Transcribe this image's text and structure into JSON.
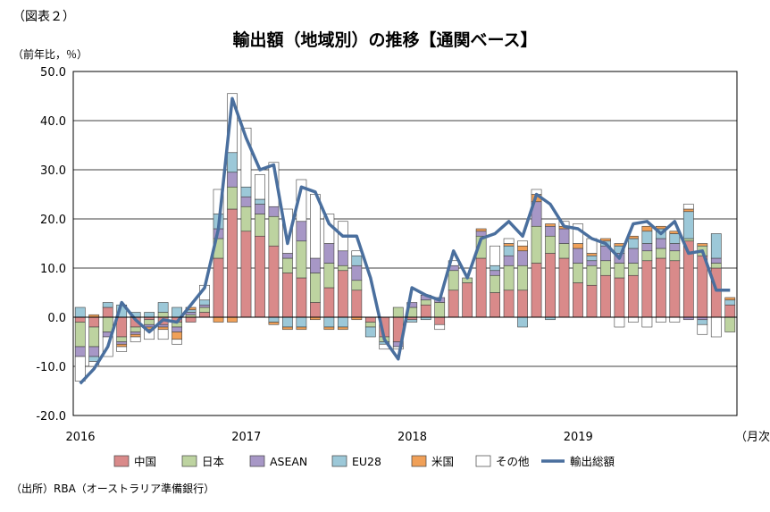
{
  "figure_label": "（図表２）",
  "source": "（出所）RBA（オーストラリア準備銀行）",
  "colors": {
    "china": "#d98a8a",
    "japan": "#bdd3a0",
    "asean": "#a797c6",
    "eu28": "#9cc8d8",
    "us": "#f0a058",
    "other": "#ffffff",
    "total": "#4a6f9e",
    "edge": "#404040"
  },
  "chart_data": {
    "type": "bar",
    "subtype": "stacked-bar-with-line",
    "title": "輸出額（地域別）の推移【通関ベース】",
    "ylabel": "（前年比，％）",
    "xlabel": "（月次）",
    "ylim": [
      -20,
      50
    ],
    "y_ticks": [
      "50.0",
      "40.0",
      "30.0",
      "20.0",
      "10.0",
      "0.0",
      "-10.0",
      "-20.0"
    ],
    "x_tick_labels": [
      {
        "label": "2016",
        "index": 0
      },
      {
        "label": "2017",
        "index": 12
      },
      {
        "label": "2018",
        "index": 24
      },
      {
        "label": "2019",
        "index": 36
      }
    ],
    "grid": true,
    "legend_position": "bottom",
    "x": [
      "2016-01",
      "2016-02",
      "2016-03",
      "2016-04",
      "2016-05",
      "2016-06",
      "2016-07",
      "2016-08",
      "2016-09",
      "2016-10",
      "2016-11",
      "2016-12",
      "2017-01",
      "2017-02",
      "2017-03",
      "2017-04",
      "2017-05",
      "2017-06",
      "2017-07",
      "2017-08",
      "2017-09",
      "2017-10",
      "2017-11",
      "2017-12",
      "2018-01",
      "2018-02",
      "2018-03",
      "2018-04",
      "2018-05",
      "2018-06",
      "2018-07",
      "2018-08",
      "2018-09",
      "2018-10",
      "2018-11",
      "2018-12",
      "2019-01",
      "2019-02",
      "2019-03",
      "2019-04",
      "2019-05",
      "2019-06",
      "2019-07",
      "2019-08",
      "2019-09",
      "2019-10",
      "2019-11",
      "2019-12"
    ],
    "series": [
      {
        "name": "中国",
        "key": "china",
        "values": [
          -1,
          -2,
          2,
          -4,
          -2,
          -0.5,
          -1.5,
          -1,
          -1,
          1,
          12,
          22,
          17.5,
          16.5,
          14.5,
          9,
          8,
          3,
          6,
          9.5,
          5.5,
          -1,
          -4,
          -5,
          -0.5,
          2.5,
          -1.5,
          5.5,
          7,
          12,
          5,
          5.5,
          5.5,
          11,
          13,
          12,
          7,
          6.5,
          8.5,
          8,
          8.5,
          11.5,
          12,
          11.5,
          15.5,
          12.5,
          10,
          2.5
        ]
      },
      {
        "name": "日本",
        "key": "japan",
        "values": [
          -5,
          -4,
          -3,
          -1,
          -1,
          -1,
          1,
          -1,
          0.5,
          1,
          4,
          4.5,
          5,
          4.5,
          6,
          3,
          7.5,
          6,
          5,
          1,
          2,
          -1,
          -1,
          2,
          2,
          1,
          3,
          4,
          1,
          4.5,
          3.5,
          5,
          5,
          7.5,
          3.5,
          3,
          4,
          4,
          3,
          3,
          2.5,
          2,
          2,
          2,
          0.5,
          2,
          1,
          -3
        ]
      },
      {
        "name": "ASEAN",
        "key": "asean",
        "values": [
          -2,
          -2,
          -1,
          -0.5,
          -0.5,
          -0.5,
          -0.5,
          -1,
          0.5,
          0.5,
          2,
          3,
          2,
          2,
          2,
          1,
          4,
          3,
          4,
          3,
          3,
          0,
          0,
          -1,
          1,
          1,
          1,
          1,
          0,
          1,
          1,
          2,
          3,
          5,
          2,
          3,
          3,
          1,
          3,
          2,
          3,
          1.5,
          2,
          1.5,
          -0.5,
          -0.5,
          1,
          0
        ]
      },
      {
        "name": "EU28",
        "key": "eu28",
        "values": [
          2,
          -1,
          1,
          2.5,
          1,
          1,
          2,
          2,
          0.5,
          1,
          3,
          4,
          2,
          1,
          -1,
          -2,
          -2,
          0,
          -2,
          -2,
          2,
          -2,
          -0.5,
          0,
          -0.5,
          -0.5,
          0,
          0,
          0,
          0,
          1,
          2,
          -2,
          0,
          -0.5,
          0,
          0,
          1,
          1,
          1.5,
          2,
          2.5,
          2,
          2,
          5.5,
          -1,
          5,
          1
        ]
      },
      {
        "name": "米国",
        "key": "us",
        "values": [
          0,
          0.5,
          0,
          -0.5,
          -0.5,
          -0.5,
          -0.5,
          -1.5,
          0.5,
          0,
          -1,
          -1,
          0,
          0,
          -0.5,
          -0.5,
          -0.5,
          -0.5,
          -0.5,
          -0.5,
          -0.5,
          0,
          0,
          0,
          0,
          0,
          0,
          0,
          0,
          0.5,
          0,
          0.5,
          1,
          1.5,
          0.5,
          0.5,
          1,
          0.5,
          0.5,
          0.5,
          0.5,
          1,
          0.5,
          0.5,
          0.5,
          0.5,
          0,
          0.5
        ]
      },
      {
        "name": "その他",
        "key": "other",
        "values": [
          -5,
          -1,
          -4,
          -1,
          -1,
          -2,
          -2,
          -1,
          0,
          3,
          5,
          12,
          12,
          5,
          9,
          9,
          8.5,
          13,
          6,
          6,
          1,
          0,
          -1,
          -0.5,
          0,
          0,
          -1,
          1,
          0,
          0,
          4,
          1,
          1,
          1,
          0,
          1,
          4,
          3,
          0,
          -2,
          -1,
          -2,
          -1,
          -1,
          1,
          -2,
          -4,
          0
        ]
      },
      {
        "name": "輸出総額",
        "key": "total",
        "render": "line",
        "values": [
          -13.5,
          -10.5,
          -6,
          3,
          -0.5,
          -3,
          -0.5,
          -1,
          2.5,
          6,
          18,
          44.5,
          36.5,
          30,
          31,
          15,
          26.5,
          25.5,
          19,
          16.5,
          16.5,
          8,
          -4.5,
          -8.5,
          6,
          4.5,
          3.5,
          13.5,
          8,
          16,
          17,
          19.5,
          16.5,
          25,
          23,
          18.5,
          18,
          16,
          15,
          12,
          19,
          19.5,
          17,
          19.5,
          13,
          13.5,
          5.5,
          5.5
        ]
      }
    ]
  }
}
